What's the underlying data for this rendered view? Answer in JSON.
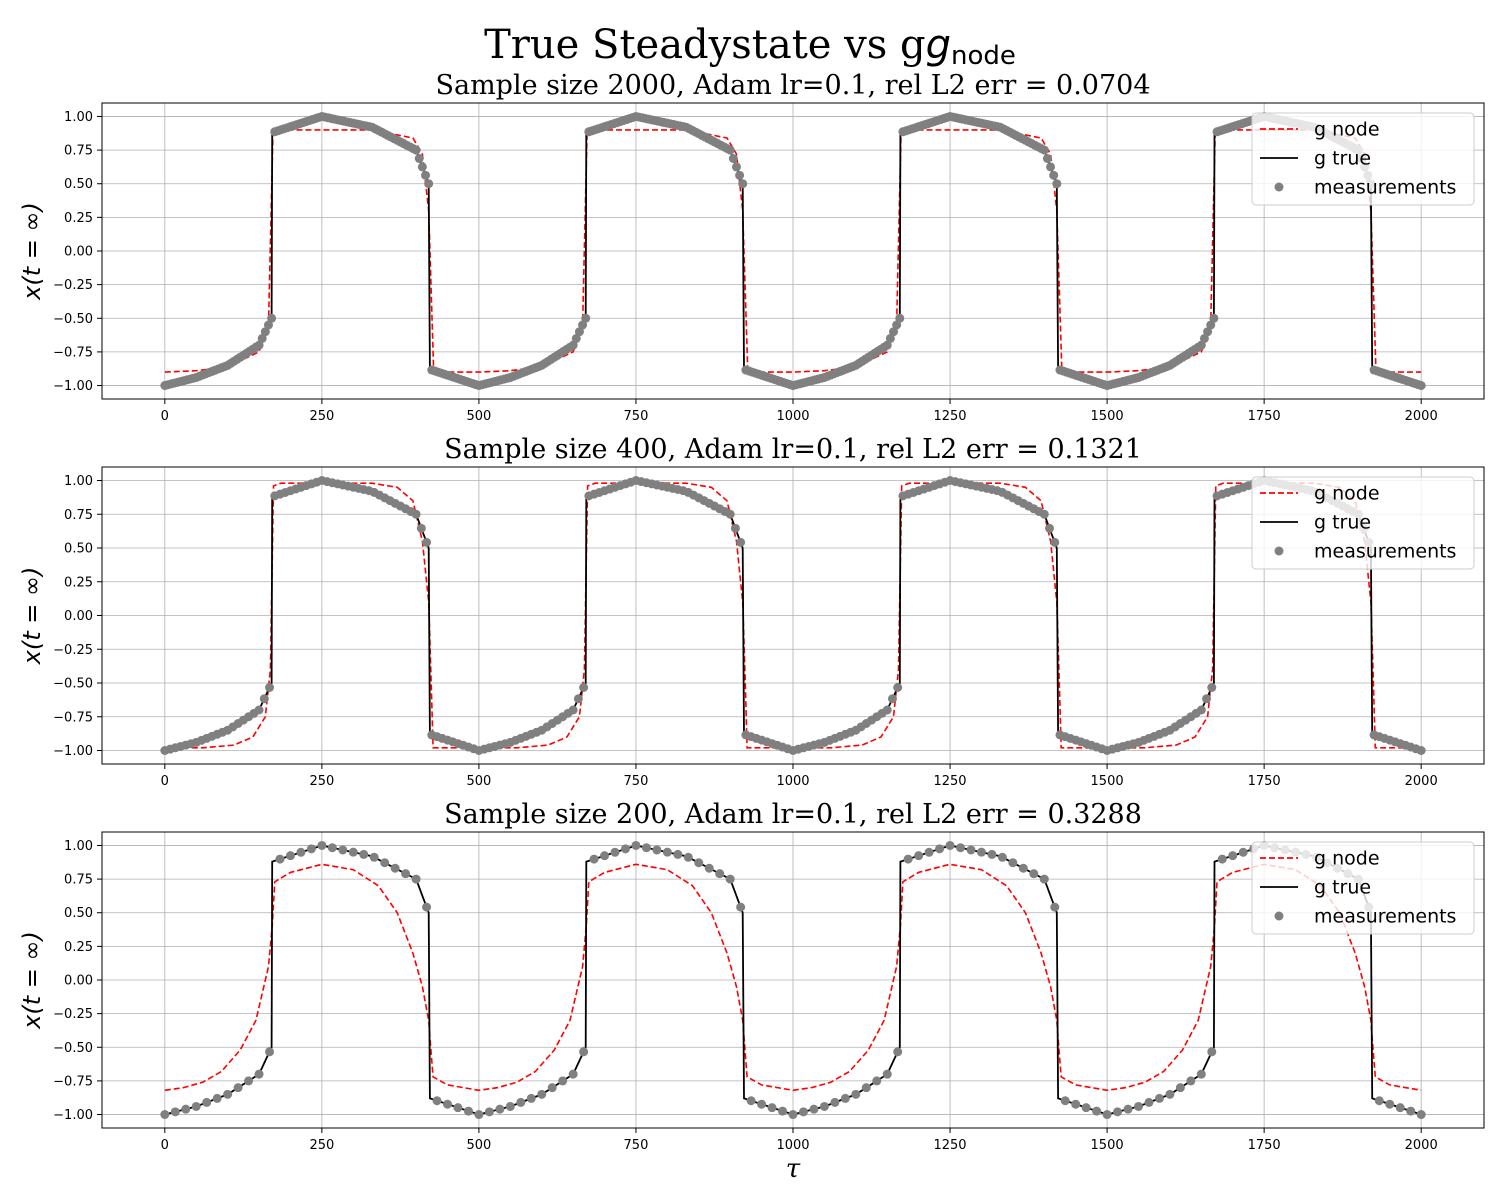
{
  "title": "True Steadystate vs g",
  "title_subscript": "node",
  "xlabel": "τ",
  "colors": {
    "g_node": "#ff0000",
    "g_true": "#000000",
    "measurements": "#808080",
    "grid": "#b0b0b0"
  },
  "chart_data": [
    {
      "type": "line",
      "title": "Sample size 2000, Adam lr=0.1, rel L2 err = 0.0704",
      "ylabel": "x(t = ∞)",
      "xlim": [
        -100,
        2100
      ],
      "ylim": [
        -1.1,
        1.1
      ],
      "xticks": [
        0,
        250,
        500,
        750,
        1000,
        1250,
        1500,
        1750,
        2000
      ],
      "yticks": [
        -1.0,
        -0.75,
        -0.5,
        -0.25,
        0.0,
        0.25,
        0.5,
        0.75,
        1.0
      ],
      "xtick_labels": [
        "0",
        "250",
        "500",
        "750",
        "1000",
        "1250",
        "1500",
        "1750",
        "2000"
      ],
      "ytick_labels": [
        "−1.00",
        "−0.75",
        "−0.50",
        "−0.25",
        "0.00",
        "0.25",
        "0.50",
        "0.75",
        "1.00"
      ],
      "grid": true,
      "legend": {
        "position": "top-right",
        "entries": [
          "g node",
          "g true",
          "measurements"
        ]
      },
      "sample_size": 2000,
      "series": [
        {
          "name": "g node",
          "style": "dashed",
          "period": 500,
          "values_x": [
            0,
            50,
            100,
            150,
            165,
            172,
            180,
            250,
            330,
            395,
            410,
            420,
            428
          ],
          "values_y": [
            -0.9,
            -0.89,
            -0.86,
            -0.75,
            -0.55,
            0.86,
            0.9,
            0.9,
            0.9,
            0.84,
            0.72,
            0.3,
            -0.9
          ]
        },
        {
          "name": "g true",
          "style": "solid",
          "period": 500,
          "values_x": [
            0,
            50,
            100,
            150,
            170,
            171,
            250,
            330,
            400,
            420,
            422,
            500
          ],
          "values_y": [
            -1.0,
            -0.94,
            -0.85,
            -0.7,
            -0.5,
            0.88,
            1.0,
            0.92,
            0.75,
            0.5,
            -0.88,
            -1.0
          ]
        },
        {
          "name": "measurements",
          "style": "points",
          "period": 500,
          "values_x": [
            0,
            50,
            100,
            150,
            170,
            171,
            250,
            330,
            400,
            420,
            422,
            500
          ],
          "values_y": [
            -1.0,
            -0.94,
            -0.85,
            -0.7,
            -0.5,
            0.88,
            1.0,
            0.92,
            0.75,
            0.5,
            -0.88,
            -1.0
          ]
        }
      ]
    },
    {
      "type": "line",
      "title": "Sample size 400, Adam lr=0.1, rel L2 err = 0.1321",
      "ylabel": "x(t = ∞)",
      "xlim": [
        -100,
        2100
      ],
      "ylim": [
        -1.1,
        1.1
      ],
      "xticks": [
        0,
        250,
        500,
        750,
        1000,
        1250,
        1500,
        1750,
        2000
      ],
      "yticks": [
        -1.0,
        -0.75,
        -0.5,
        -0.25,
        0.0,
        0.25,
        0.5,
        0.75,
        1.0
      ],
      "xtick_labels": [
        "0",
        "250",
        "500",
        "750",
        "1000",
        "1250",
        "1500",
        "1750",
        "2000"
      ],
      "ytick_labels": [
        "−1.00",
        "−0.75",
        "−0.50",
        "−0.25",
        "0.00",
        "0.25",
        "0.50",
        "0.75",
        "1.00"
      ],
      "grid": true,
      "legend": {
        "position": "top-right",
        "entries": [
          "g node",
          "g true",
          "measurements"
        ]
      },
      "sample_size": 400,
      "series": [
        {
          "name": "g node",
          "style": "dashed",
          "period": 500,
          "values_x": [
            0,
            60,
            110,
            140,
            160,
            168,
            173,
            185,
            250,
            330,
            370,
            395,
            410,
            420,
            424,
            427
          ],
          "values_y": [
            -0.98,
            -0.98,
            -0.96,
            -0.9,
            -0.75,
            -0.4,
            0.96,
            0.98,
            0.98,
            0.98,
            0.95,
            0.85,
            0.55,
            0.1,
            -0.5,
            -0.98
          ]
        },
        {
          "name": "g true",
          "style": "solid",
          "period": 500,
          "values_x": [
            0,
            50,
            100,
            150,
            170,
            171,
            250,
            330,
            400,
            420,
            422,
            500
          ],
          "values_y": [
            -1.0,
            -0.94,
            -0.85,
            -0.7,
            -0.5,
            0.88,
            1.0,
            0.92,
            0.75,
            0.5,
            -0.88,
            -1.0
          ]
        },
        {
          "name": "measurements",
          "style": "points",
          "period": 500,
          "values_x": [
            0,
            50,
            100,
            150,
            170,
            171,
            250,
            330,
            400,
            420,
            422,
            500
          ],
          "values_y": [
            -1.0,
            -0.94,
            -0.85,
            -0.7,
            -0.5,
            0.88,
            1.0,
            0.92,
            0.75,
            0.5,
            -0.88,
            -1.0
          ]
        }
      ]
    },
    {
      "type": "line",
      "title": "Sample size 200, Adam lr=0.1, rel L2 err = 0.3288",
      "ylabel": "x(t = ∞)",
      "xlim": [
        -100,
        2100
      ],
      "ylim": [
        -1.1,
        1.1
      ],
      "xticks": [
        0,
        250,
        500,
        750,
        1000,
        1250,
        1500,
        1750,
        2000
      ],
      "yticks": [
        -1.0,
        -0.75,
        -0.5,
        -0.25,
        0.0,
        0.25,
        0.5,
        0.75,
        1.0
      ],
      "xtick_labels": [
        "0",
        "250",
        "500",
        "750",
        "1000",
        "1250",
        "1500",
        "1750",
        "2000"
      ],
      "ytick_labels": [
        "−1.00",
        "−0.75",
        "−0.50",
        "−0.25",
        "0.00",
        "0.25",
        "0.50",
        "0.75",
        "1.00"
      ],
      "grid": true,
      "legend": {
        "position": "top-right",
        "entries": [
          "g node",
          "g true",
          "measurements"
        ]
      },
      "sample_size": 200,
      "series": [
        {
          "name": "g node",
          "style": "dashed",
          "period": 500,
          "values_x": [
            0,
            30,
            60,
            90,
            120,
            145,
            165,
            171,
            175,
            200,
            250,
            300,
            340,
            370,
            395,
            410,
            420,
            424,
            427,
            450
          ],
          "values_y": [
            -0.82,
            -0.8,
            -0.76,
            -0.68,
            -0.52,
            -0.3,
            0.1,
            0.4,
            0.73,
            0.8,
            0.86,
            0.82,
            0.7,
            0.5,
            0.2,
            -0.05,
            -0.3,
            -0.55,
            -0.72,
            -0.78
          ]
        },
        {
          "name": "g true",
          "style": "solid",
          "period": 500,
          "values_x": [
            0,
            50,
            100,
            150,
            170,
            171,
            250,
            330,
            400,
            420,
            422,
            500
          ],
          "values_y": [
            -1.0,
            -0.94,
            -0.85,
            -0.7,
            -0.5,
            0.88,
            1.0,
            0.92,
            0.75,
            0.5,
            -0.88,
            -1.0
          ]
        },
        {
          "name": "measurements",
          "style": "points",
          "period": 500,
          "values_x": [
            0,
            50,
            100,
            150,
            170,
            171,
            250,
            330,
            400,
            420,
            422,
            500
          ],
          "values_y": [
            -1.0,
            -0.94,
            -0.85,
            -0.7,
            -0.5,
            0.88,
            1.0,
            0.92,
            0.75,
            0.5,
            -0.88,
            -1.0
          ]
        }
      ]
    }
  ]
}
